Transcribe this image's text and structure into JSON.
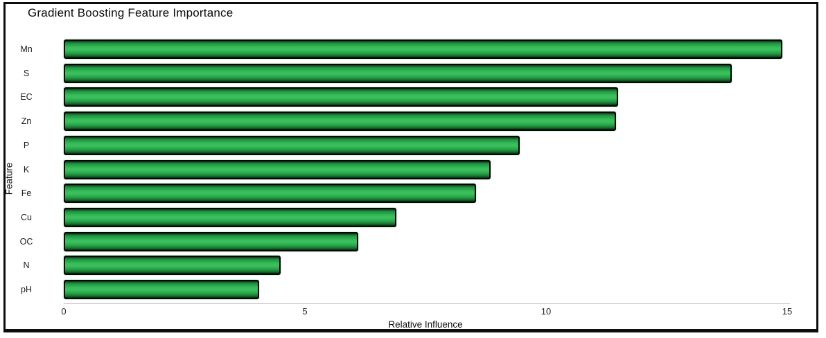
{
  "chart_data": {
    "type": "bar",
    "orientation": "horizontal",
    "title": "Gradient Boosting Feature Importance",
    "xlabel": "Relative Influence",
    "ylabel": "Feature",
    "categories": [
      "Mn",
      "S",
      "EC",
      "Zn",
      "P",
      "K",
      "Fe",
      "Cu",
      "OC",
      "N",
      "pH"
    ],
    "values": [
      14.9,
      13.85,
      11.5,
      11.45,
      9.45,
      8.85,
      8.55,
      6.9,
      6.1,
      4.5,
      4.05
    ],
    "xlim": [
      0,
      15
    ],
    "xticks": [
      "0",
      "5",
      "10",
      "15"
    ],
    "grid": false,
    "legend": null,
    "bar_fill_color": "#2eb34f",
    "bar_border_color": "#000000",
    "axis_line_color": "#c3c3c3",
    "background_color": "#ffffff",
    "frame_border_color": "#0d0d0d"
  }
}
